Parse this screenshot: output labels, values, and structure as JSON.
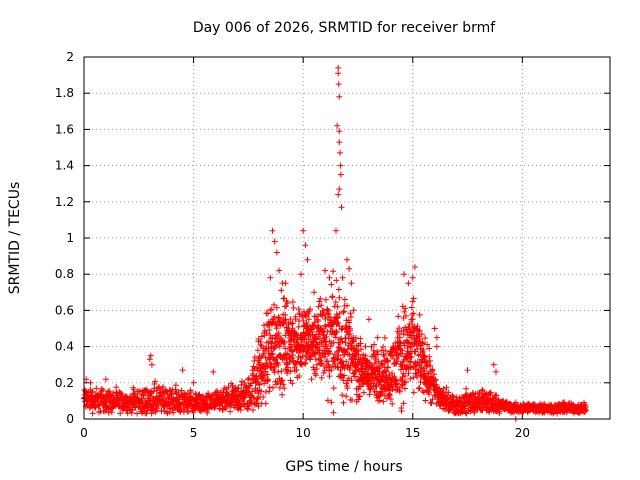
{
  "chart_data": {
    "type": "scatter",
    "title": "Day 006 of 2026, SRMTID for receiver brmf",
    "xlabel": "GPS time / hours",
    "ylabel": "SRMTID / TECUs",
    "xlim": [
      0,
      24
    ],
    "ylim": [
      0,
      2
    ],
    "xticks": [
      0,
      5,
      10,
      15,
      20
    ],
    "xtick_labels": [
      "0",
      "5",
      "10",
      "15",
      "20"
    ],
    "yticks": [
      0,
      0.2,
      0.4,
      0.6,
      0.8,
      1,
      1.2,
      1.4,
      1.6,
      1.8,
      2
    ],
    "ytick_labels": [
      "0",
      "0.2",
      "0.4",
      "0.6",
      "0.8",
      "1",
      "1.2",
      "1.4",
      "1.6",
      "1.8",
      "2"
    ],
    "grid": true,
    "marker": "+",
    "series_color": "#ff0000",
    "series": [
      {
        "name": "SRMTID",
        "envelope": {
          "x": [
            0.0,
            1.0,
            2.0,
            3.0,
            3.5,
            4.5,
            5.5,
            6.5,
            7.5,
            8.0,
            8.5,
            9.0,
            9.5,
            10.0,
            10.5,
            11.0,
            11.5,
            12.0,
            12.5,
            13.0,
            13.5,
            14.0,
            14.5,
            15.0,
            15.5,
            16.0,
            16.5,
            17.0,
            17.5,
            18.0,
            18.5,
            19.0,
            19.5,
            20.0,
            21.0,
            22.0,
            22.9
          ],
          "baseline": [
            0.11,
            0.1,
            0.09,
            0.1,
            0.1,
            0.1,
            0.08,
            0.1,
            0.13,
            0.25,
            0.4,
            0.45,
            0.4,
            0.45,
            0.42,
            0.45,
            0.45,
            0.4,
            0.28,
            0.25,
            0.25,
            0.25,
            0.35,
            0.4,
            0.3,
            0.15,
            0.1,
            0.08,
            0.09,
            0.1,
            0.09,
            0.08,
            0.06,
            0.06,
            0.06,
            0.06,
            0.06
          ],
          "spread": [
            0.05,
            0.05,
            0.04,
            0.08,
            0.06,
            0.05,
            0.04,
            0.05,
            0.07,
            0.15,
            0.2,
            0.2,
            0.15,
            0.15,
            0.15,
            0.2,
            0.25,
            0.2,
            0.12,
            0.1,
            0.12,
            0.12,
            0.2,
            0.18,
            0.12,
            0.08,
            0.05,
            0.04,
            0.05,
            0.06,
            0.05,
            0.03,
            0.02,
            0.02,
            0.02,
            0.02,
            0.02
          ]
        },
        "peaks": [
          {
            "x": 0.1,
            "y": 0.22
          },
          {
            "x": 0.3,
            "y": 0.2
          },
          {
            "x": 1.0,
            "y": 0.22
          },
          {
            "x": 3.0,
            "y": 0.33
          },
          {
            "x": 3.05,
            "y": 0.35
          },
          {
            "x": 3.1,
            "y": 0.3
          },
          {
            "x": 4.5,
            "y": 0.27
          },
          {
            "x": 5.0,
            "y": 0.2
          },
          {
            "x": 5.9,
            "y": 0.26
          },
          {
            "x": 8.6,
            "y": 1.04
          },
          {
            "x": 8.7,
            "y": 0.98
          },
          {
            "x": 8.8,
            "y": 0.92
          },
          {
            "x": 8.5,
            "y": 0.78
          },
          {
            "x": 8.9,
            "y": 0.82
          },
          {
            "x": 9.2,
            "y": 0.75
          },
          {
            "x": 10.0,
            "y": 1.04
          },
          {
            "x": 10.1,
            "y": 0.96
          },
          {
            "x": 10.2,
            "y": 0.88
          },
          {
            "x": 9.9,
            "y": 0.8
          },
          {
            "x": 10.5,
            "y": 0.7
          },
          {
            "x": 11.0,
            "y": 0.82
          },
          {
            "x": 11.2,
            "y": 0.78
          },
          {
            "x": 11.5,
            "y": 1.04
          },
          {
            "x": 11.6,
            "y": 1.94
          },
          {
            "x": 11.6,
            "y": 1.91
          },
          {
            "x": 11.62,
            "y": 1.85
          },
          {
            "x": 11.65,
            "y": 1.78
          },
          {
            "x": 11.55,
            "y": 1.62
          },
          {
            "x": 11.65,
            "y": 1.59
          },
          {
            "x": 11.65,
            "y": 1.53
          },
          {
            "x": 11.68,
            "y": 1.47
          },
          {
            "x": 11.7,
            "y": 1.4
          },
          {
            "x": 11.72,
            "y": 1.35
          },
          {
            "x": 11.65,
            "y": 1.27
          },
          {
            "x": 11.6,
            "y": 1.24
          },
          {
            "x": 11.75,
            "y": 1.17
          },
          {
            "x": 11.8,
            "y": 0.78
          },
          {
            "x": 12.0,
            "y": 0.88
          },
          {
            "x": 12.1,
            "y": 0.83
          },
          {
            "x": 12.2,
            "y": 0.75
          },
          {
            "x": 13.0,
            "y": 0.55
          },
          {
            "x": 13.4,
            "y": 0.45
          },
          {
            "x": 14.6,
            "y": 0.8
          },
          {
            "x": 14.8,
            "y": 0.75
          },
          {
            "x": 15.0,
            "y": 0.78
          },
          {
            "x": 15.1,
            "y": 0.84
          },
          {
            "x": 16.0,
            "y": 0.5
          },
          {
            "x": 16.1,
            "y": 0.45
          },
          {
            "x": 16.1,
            "y": 0.4
          },
          {
            "x": 17.5,
            "y": 0.27
          },
          {
            "x": 18.7,
            "y": 0.3
          },
          {
            "x": 18.8,
            "y": 0.26
          },
          {
            "x": 19.7,
            "y": 0.0
          }
        ]
      }
    ]
  }
}
